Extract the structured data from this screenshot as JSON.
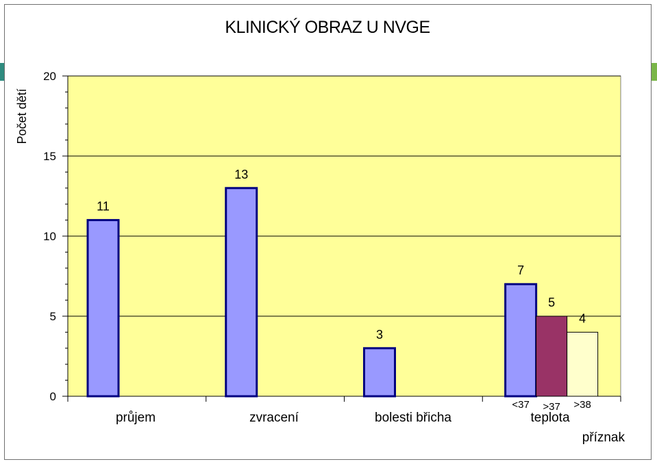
{
  "chart_data": {
    "type": "bar",
    "title": "KLINICKÝ OBRAZ U NVGE",
    "ylabel": "Počet dětí",
    "xlabel": "příznak",
    "ylim": [
      0,
      20
    ],
    "yticks": [
      0,
      5,
      10,
      15,
      20
    ],
    "grid": true,
    "categories": [
      "průjem",
      "zvracení",
      "bolesti břicha",
      "teplota"
    ],
    "bars": [
      {
        "category": "průjem",
        "value": 11,
        "label": "11",
        "sub_label": ""
      },
      {
        "category": "zvracení",
        "value": 13,
        "label": "13",
        "sub_label": ""
      },
      {
        "category": "bolesti břicha",
        "value": 3,
        "label": "3",
        "sub_label": ""
      },
      {
        "category": "teplota",
        "value": 7,
        "label": "7",
        "sub_label": "<37"
      },
      {
        "category": "teplota",
        "value": 5,
        "label": "5",
        "sub_label": ">37"
      },
      {
        "category": "teplota",
        "value": 4,
        "label": "4",
        "sub_label": ">38"
      }
    ],
    "colors": {
      "plot_background": "#ffff99",
      "bar_default": "#9999ff",
      "bar_gt37": "#993366",
      "bar_gt38": "#ffffcc",
      "bar_outline": "#000080",
      "gridline": "#000000"
    }
  }
}
